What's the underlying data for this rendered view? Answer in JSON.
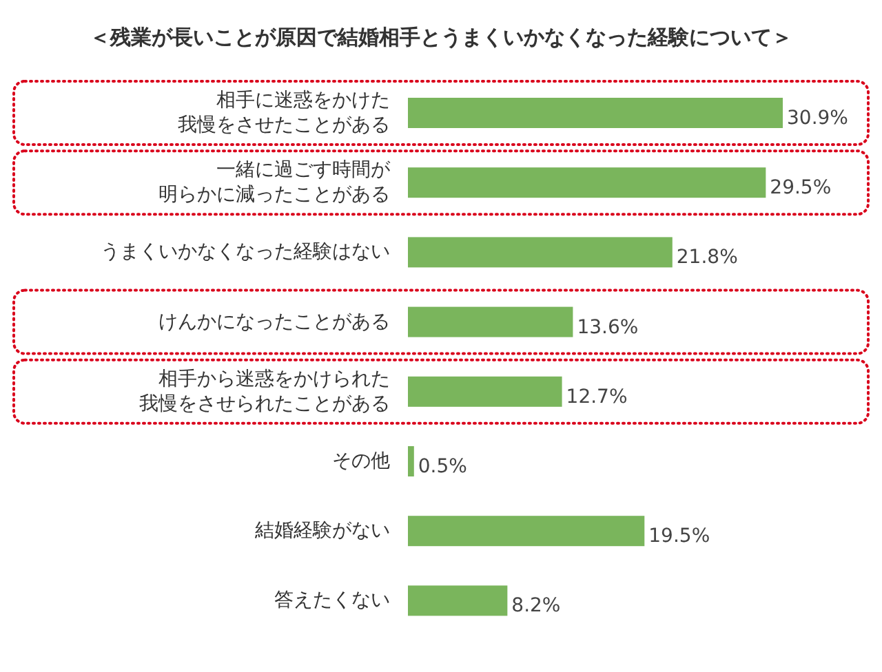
{
  "chart_data": {
    "type": "bar",
    "orientation": "horizontal",
    "title": "＜残業が長いことが原因で結婚相手とうまくいかなくなった経験について＞",
    "categories": [
      "相手に迷惑をかけた我慢をさせたことがある",
      "一緒に過ごす時間が明らかに減ったことがある",
      "うまくいかなくなった経験はない",
      "けんかになったことがある",
      "相手から迷惑をかけられた我慢をさせられたことがある",
      "その他",
      "結婚経験がない",
      "答えたくない"
    ],
    "values": [
      30.9,
      29.5,
      21.8,
      13.6,
      12.7,
      0.5,
      19.5,
      8.2
    ],
    "value_labels": [
      "30.9%",
      "29.5%",
      "21.8%",
      "13.6%",
      "12.7%",
      "0.5%",
      "19.5%",
      "8.2%"
    ],
    "color": "#7ab55c"
  }
}
